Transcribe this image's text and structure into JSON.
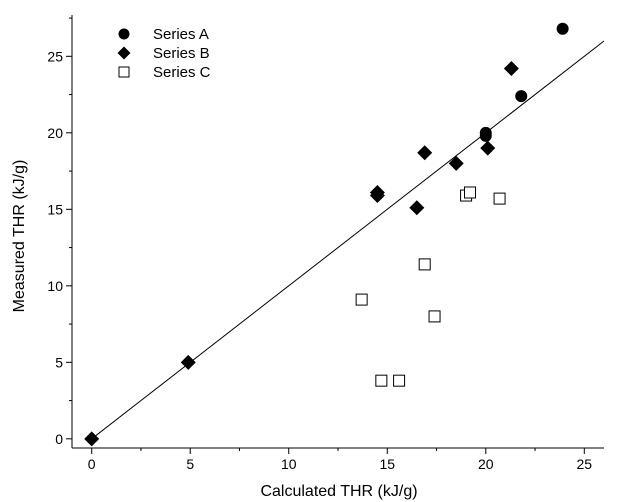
{
  "chart_data": {
    "type": "scatter",
    "xlabel": "Calculated THR (kJ/g)",
    "ylabel": "Measured THR (kJ/g)",
    "xlim": [
      -1,
      26
    ],
    "ylim": [
      -0.6,
      27.7
    ],
    "x_ticks": [
      0,
      5,
      10,
      15,
      20,
      25
    ],
    "y_ticks": [
      0,
      5,
      10,
      15,
      20,
      25
    ],
    "x_minor_step": 2.5,
    "y_minor_step": 2.5,
    "grid": false,
    "legend_position": "top-left",
    "series": [
      {
        "name": "Series A",
        "marker": "filled-circle",
        "color": "#000000",
        "points": [
          [
            20.0,
            20.0
          ],
          [
            20.0,
            19.8
          ],
          [
            21.8,
            22.4
          ],
          [
            23.9,
            26.8
          ]
        ]
      },
      {
        "name": "Series B",
        "marker": "filled-diamond",
        "color": "#000000",
        "points": [
          [
            0.0,
            0.0
          ],
          [
            4.9,
            5.0
          ],
          [
            14.5,
            16.1
          ],
          [
            14.5,
            15.9
          ],
          [
            16.5,
            15.1
          ],
          [
            16.9,
            18.7
          ],
          [
            18.5,
            18.0
          ],
          [
            20.1,
            19.0
          ],
          [
            21.3,
            24.2
          ]
        ]
      },
      {
        "name": "Series C",
        "marker": "open-square",
        "color": "#000000",
        "points": [
          [
            13.7,
            9.1
          ],
          [
            14.7,
            3.8
          ],
          [
            15.6,
            3.8
          ],
          [
            16.9,
            11.4
          ],
          [
            17.4,
            8.0
          ],
          [
            19.0,
            15.9
          ],
          [
            19.2,
            16.1
          ],
          [
            20.7,
            15.7
          ]
        ]
      }
    ],
    "reference_line": {
      "label": "",
      "points": [
        [
          0,
          0
        ],
        [
          26,
          26
        ]
      ]
    }
  }
}
